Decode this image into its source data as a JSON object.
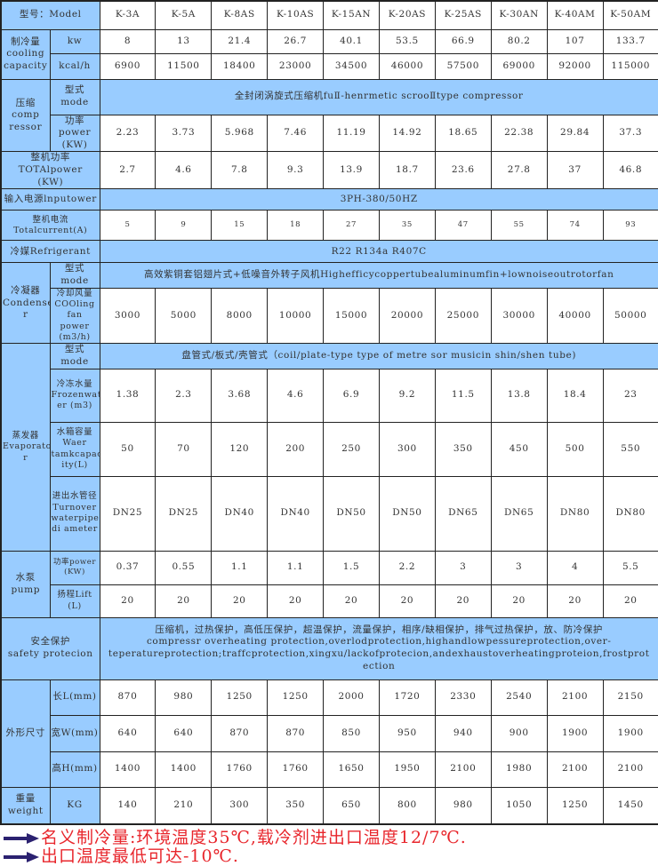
{
  "header": {
    "model_label": "型号：Model",
    "models": [
      "K-3A",
      "K-5A",
      "K-8AS",
      "K-10AS",
      "K-15AN",
      "K-20AS",
      "K-25AS",
      "K-30AN",
      "K-40AM",
      "K-50AM"
    ]
  },
  "cooling": {
    "label": "制冷量\ncooling\ncapacity",
    "kw_label": "kw",
    "kw": [
      "8",
      "13",
      "21.4",
      "26.7",
      "40.1",
      "53.5",
      "66.9",
      "80.2",
      "107",
      "133.7"
    ],
    "kcal_label": "kcal/h",
    "kcal": [
      "6900",
      "11500",
      "18400",
      "23000",
      "34500",
      "46000",
      "57500",
      "69000",
      "92000",
      "115000"
    ]
  },
  "compressor": {
    "label": "压缩\ncomp\nressor",
    "mode_label": "型式mode",
    "mode": "全封闭涡旋式压缩机fuⅡ-henrmetic scrooⅡtype compressor",
    "power_label": "功率\npower\n(KW)",
    "power": [
      "2.23",
      "3.73",
      "5.968",
      "7.46",
      "11.19",
      "14.92",
      "18.65",
      "22.38",
      "29.84",
      "37.3"
    ]
  },
  "total_power": {
    "label": "整机功率\nTOTAlpower\n(KW)",
    "values": [
      "2.7",
      "4.6",
      "7.8",
      "9.3",
      "13.9",
      "18.7",
      "23.6",
      "27.8",
      "37",
      "46.8"
    ]
  },
  "input_power": {
    "label": "输入电源lnputower",
    "value": "3PH-380/50HZ"
  },
  "total_current": {
    "label": "整机电流\nTotalcurrent(A)",
    "values": [
      "5",
      "9",
      "15",
      "18",
      "27",
      "35",
      "47",
      "55",
      "74",
      "93"
    ]
  },
  "refrigerant": {
    "label": "冷媒Refrigerant",
    "value": "R22 R134a R407C"
  },
  "condenser": {
    "label": "冷凝器\nCondense\nr",
    "mode_label": "型式mode",
    "mode": "高效紫铜套铝翅片式+低噪音外转子风机Highefficycoppertubealuminumfin+lownoiseoutrotorfan",
    "fan_label": "冷却风量\nCOOling\nfan power\n(m3/h)",
    "fan": [
      "3000",
      "5000",
      "8000",
      "10000",
      "15000",
      "20000",
      "25000",
      "30000",
      "40000",
      "50000"
    ]
  },
  "evaporator": {
    "label": "蒸发器\nEvaporato\nr",
    "mode_label": "型式mode",
    "mode": "盘管式/板式/壳管式（coil/plate-type type of metre sor musicin shin/shen tube)",
    "frozen_label": "冷冻水量\nFrozenwat\ner (m3)",
    "frozen": [
      "1.38",
      "2.3",
      "3.68",
      "4.6",
      "6.9",
      "9.2",
      "11.5",
      "13.8",
      "18.4",
      "23"
    ],
    "tank_label": "水箱容量\nWaer\ntamkcapac\nity(L)",
    "tank": [
      "50",
      "70",
      "120",
      "200",
      "250",
      "300",
      "350",
      "450",
      "500",
      "550"
    ],
    "pipe_label": "进出水管径\nTurnover\nwaterpipe\ndi ameter",
    "pipe": [
      "DN25",
      "DN25",
      "DN40",
      "DN40",
      "DN50",
      "DN50",
      "DN65",
      "DN65",
      "DN80",
      "DN80"
    ]
  },
  "pump": {
    "label": "水泵\npump",
    "power_label": "功率power\n(KW)",
    "power": [
      "0.37",
      "0.55",
      "1.1",
      "1.1",
      "1.5",
      "2.2",
      "3",
      "3",
      "4",
      "5.5"
    ],
    "lift_label": "扬程Lift\n(L)",
    "lift": [
      "20",
      "20",
      "20",
      "20",
      "20",
      "20",
      "20",
      "20",
      "20",
      "20"
    ]
  },
  "safety": {
    "label": "安全保护\nsafety protecion",
    "value": "压缩机，过热保护，高低压保护，超温保护，流量保护，相序/缺相保护，排气过热保护，放、防冷保护\ncompressr overheating protection,overlodprotection,highandlowpessureprotection,over-\nteperatureprotection;traffcprotection,xingxu/lackofprotecion,andexhaustoverheatingproteion,frostprot\nection"
  },
  "dimensions": {
    "label": "外形尺寸",
    "length_label": "长L(mm)",
    "length": [
      "870",
      "980",
      "1250",
      "1250",
      "2000",
      "1720",
      "2330",
      "2540",
      "2100",
      "2150"
    ],
    "width_label": "宽W(mm)",
    "width": [
      "640",
      "640",
      "870",
      "870",
      "850",
      "950",
      "940",
      "900",
      "1900",
      "1900"
    ],
    "height_label": "高H(mm)",
    "height": [
      "1400",
      "1400",
      "1760",
      "1760",
      "1650",
      "1950",
      "2100",
      "1980",
      "2100",
      "2100"
    ]
  },
  "weight": {
    "label": "重量\nweight",
    "unit_label": "KG",
    "values": [
      "140",
      "210",
      "300",
      "350",
      "650",
      "800",
      "980",
      "1050",
      "1250",
      "1450"
    ]
  },
  "notes": [
    "名义制冷量:环境温度35℃,载冷剂进出口温度12/7℃.",
    "出口温度最低可达-10℃."
  ],
  "colors": {
    "header_fill": "#99ccff",
    "note_text": "#e8262c",
    "arrow": "#2b2170"
  }
}
